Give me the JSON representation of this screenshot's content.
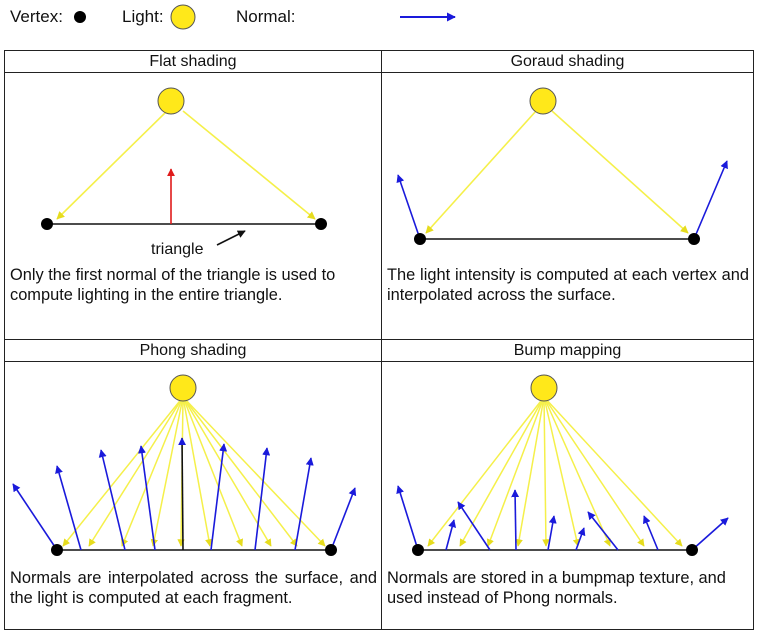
{
  "legend": {
    "vertex_label": "Vertex:",
    "light_label": "Light:",
    "normal_label": "Normal:"
  },
  "colors": {
    "light_fill": "#ffe81a",
    "light_ray": "#f5f04a",
    "normal": "#1a1adb",
    "face_normal": "#e01b1b",
    "vertex": "#000000"
  },
  "panels": [
    {
      "title": "Flat shading",
      "description": "Only the first normal of the triangle is used to compute lighting in the entire triangle.",
      "annotation": "triangle"
    },
    {
      "title": "Goraud shading",
      "description": "The light intensity is computed at each vertex and interpolated across the surface."
    },
    {
      "title": "Phong shading",
      "description": "Normals are interpolated across the surface, and the light is computed at each fragment."
    },
    {
      "title": "Bump mapping",
      "description": "Normals are stored in a bumpmap texture, and used instead of Phong normals."
    }
  ]
}
